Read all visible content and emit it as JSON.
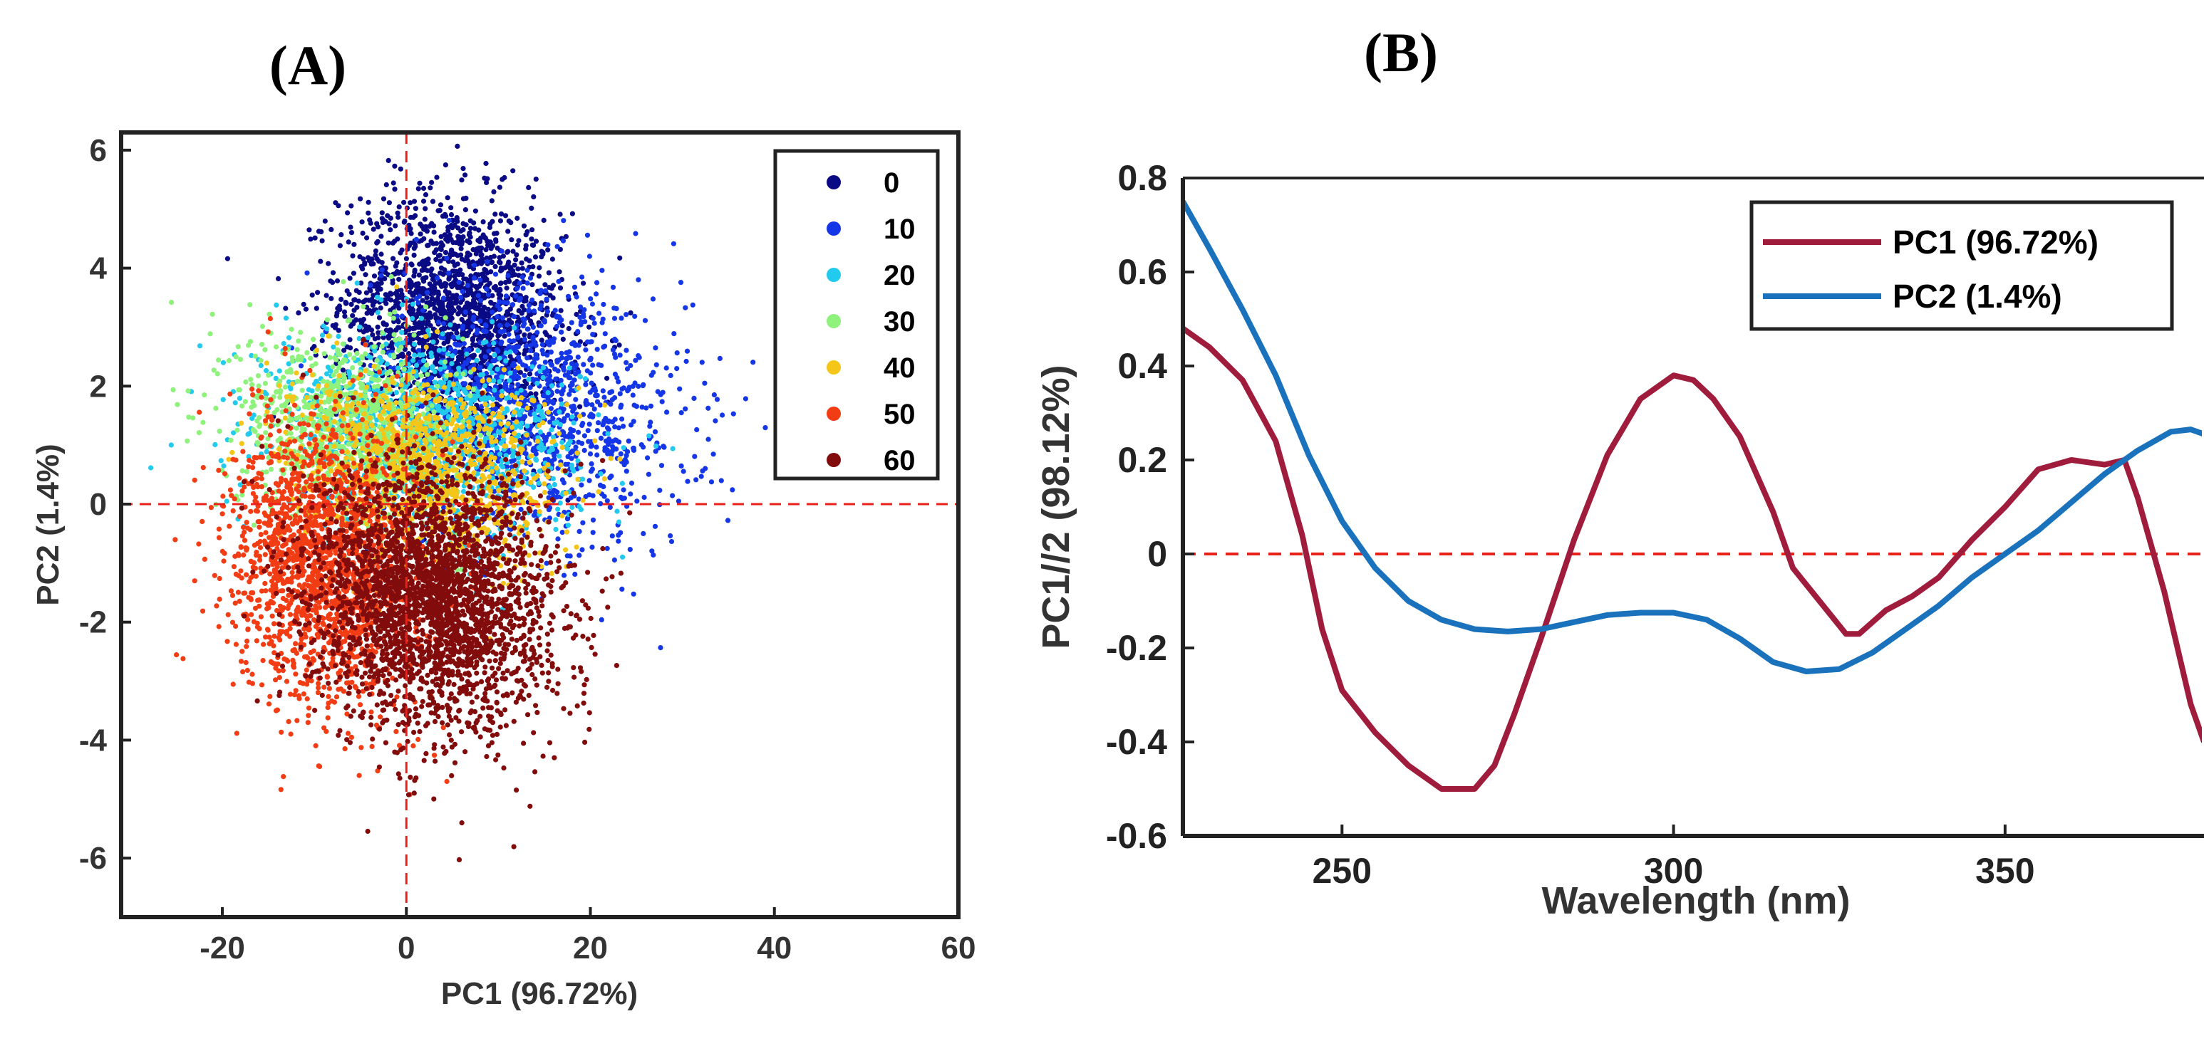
{
  "chart_data": [
    {
      "type": "scatter",
      "panel_label": "(A)",
      "title": "",
      "xlabel": "PC1 (96.72%)",
      "ylabel": "PC2 (1.4%)",
      "xlim": [
        -31,
        60
      ],
      "ylim": [
        -7,
        6.3
      ],
      "xticks": [
        -20,
        0,
        20,
        40,
        60
      ],
      "xtick_labels": [
        "-20",
        "0",
        "20",
        "40",
        "60"
      ],
      "yticks": [
        -6,
        -4,
        -2,
        0,
        2,
        4,
        6
      ],
      "ytick_labels": [
        "-6",
        "-4",
        "-2",
        "0",
        "2",
        "4",
        "6"
      ],
      "reference_lines": {
        "x": 0,
        "y": 0,
        "style": "dashed",
        "color": "#e8211b"
      },
      "legend_position": "top-right",
      "series": [
        {
          "name": "0",
          "color": "#0a0a84",
          "center": [
            5,
            3.2
          ],
          "spread": [
            11,
            1.0
          ],
          "samples": 1800
        },
        {
          "name": "10",
          "color": "#1436e6",
          "center": [
            14,
            1.6
          ],
          "spread": [
            15,
            1.1
          ],
          "samples": 1200
        },
        {
          "name": "20",
          "color": "#22cbee",
          "center": [
            2,
            1.2
          ],
          "spread": [
            15,
            0.8
          ],
          "samples": 1200
        },
        {
          "name": "30",
          "color": "#8ff27c",
          "center": [
            -6,
            1.3
          ],
          "spread": [
            11,
            0.8
          ],
          "samples": 900
        },
        {
          "name": "40",
          "color": "#f5c61a",
          "center": [
            2,
            0.6
          ],
          "spread": [
            13,
            0.8
          ],
          "samples": 1100
        },
        {
          "name": "50",
          "color": "#f23c14",
          "center": [
            -9,
            -1.0
          ],
          "spread": [
            9,
            1.2
          ],
          "samples": 1700
        },
        {
          "name": "60",
          "color": "#820c0c",
          "center": [
            3,
            -1.6
          ],
          "spread": [
            12,
            1.1
          ],
          "samples": 2800
        }
      ]
    },
    {
      "type": "line",
      "panel_label": "(B)",
      "title": "",
      "xlabel": "Wavelength (nm)",
      "ylabel": "PC1//2 (98.12%)",
      "xlim": [
        226,
        380
      ],
      "ylim": [
        -0.6,
        0.8
      ],
      "xticks": [
        250,
        300,
        350
      ],
      "xtick_labels": [
        "250",
        "300",
        "350"
      ],
      "yticks": [
        -0.6,
        -0.4,
        -0.2,
        0,
        0.2,
        0.4,
        0.6,
        0.8
      ],
      "ytick_labels": [
        "-0.6",
        "-0.4",
        "-0.2",
        "0",
        "0.2",
        "0.4",
        "0.6",
        "0.8"
      ],
      "reference_lines": {
        "y": 0,
        "style": "dashed",
        "color": "#e8211b"
      },
      "legend_position": "top-right",
      "series": [
        {
          "name": "PC1 (96.72%)",
          "color": "#a01c3c",
          "x": [
            226,
            230,
            235,
            240,
            244,
            247,
            250,
            255,
            260,
            265,
            270,
            273,
            276,
            280,
            285,
            290,
            295,
            300,
            303,
            306,
            310,
            315,
            318,
            322,
            326,
            328,
            332,
            336,
            340,
            345,
            350,
            355,
            360,
            365,
            368,
            370,
            372,
            374,
            376,
            378,
            380
          ],
          "y": [
            0.48,
            0.44,
            0.37,
            0.24,
            0.04,
            -0.16,
            -0.29,
            -0.38,
            -0.45,
            -0.5,
            -0.5,
            -0.45,
            -0.34,
            -0.18,
            0.03,
            0.21,
            0.33,
            0.38,
            0.37,
            0.33,
            0.25,
            0.09,
            -0.03,
            -0.1,
            -0.17,
            -0.17,
            -0.12,
            -0.09,
            -0.05,
            0.03,
            0.1,
            0.18,
            0.2,
            0.19,
            0.2,
            0.12,
            0.02,
            -0.08,
            -0.2,
            -0.32,
            -0.4
          ]
        },
        {
          "name": "PC2 (1.4%)",
          "color": "#1a72bc",
          "x": [
            226,
            230,
            235,
            240,
            245,
            250,
            255,
            260,
            265,
            270,
            275,
            280,
            285,
            290,
            295,
            300,
            305,
            310,
            315,
            320,
            325,
            330,
            335,
            340,
            345,
            350,
            355,
            360,
            365,
            370,
            375,
            378,
            380
          ],
          "y": [
            0.75,
            0.65,
            0.52,
            0.38,
            0.21,
            0.07,
            -0.03,
            -0.1,
            -0.14,
            -0.16,
            -0.165,
            -0.16,
            -0.145,
            -0.13,
            -0.125,
            -0.125,
            -0.14,
            -0.18,
            -0.23,
            -0.25,
            -0.245,
            -0.21,
            -0.16,
            -0.11,
            -0.05,
            0.0,
            0.05,
            0.11,
            0.17,
            0.22,
            0.26,
            0.265,
            0.255
          ]
        }
      ]
    }
  ]
}
